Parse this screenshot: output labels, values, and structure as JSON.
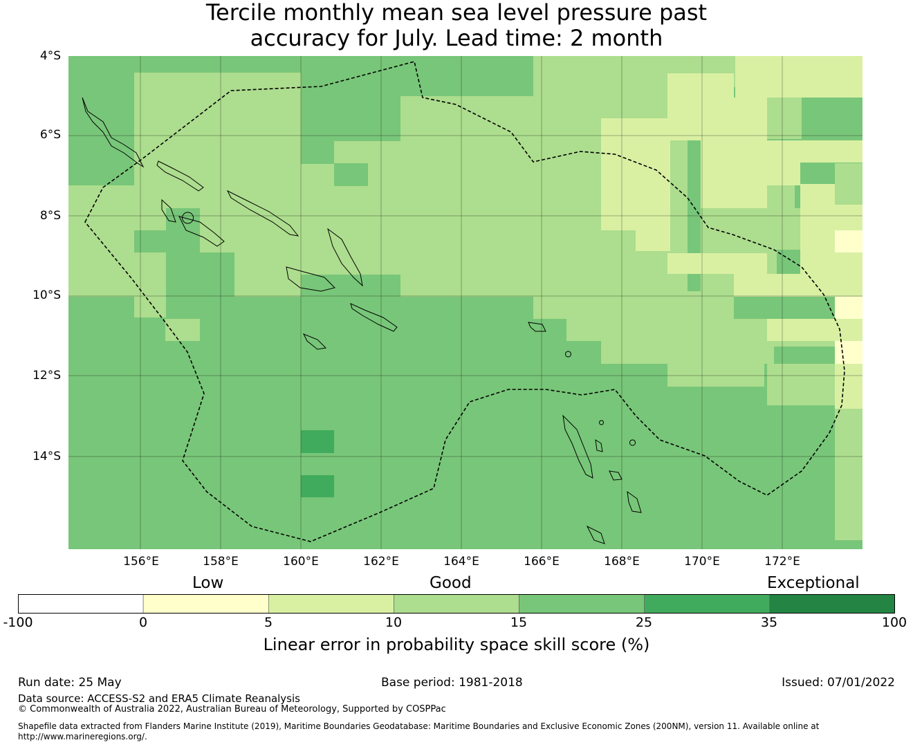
{
  "title": {
    "line1": "Tercile monthly mean sea level pressure past",
    "line2": "accuracy for July. Lead time: 2 month"
  },
  "map": {
    "lat_ticks": [
      "4°S",
      "6°S",
      "8°S",
      "10°S",
      "12°S",
      "14°S"
    ],
    "lon_ticks": [
      "156°E",
      "158°E",
      "160°E",
      "162°E",
      "164°E",
      "166°E",
      "168°E",
      "170°E",
      "172°E"
    ],
    "extent": {
      "lon_min": 154.2,
      "lon_max": 174.0,
      "lat_top": -4.0,
      "lat_bottom": -16.3
    },
    "boundary_style": "dashed"
  },
  "colorbar": {
    "categories": [
      "Low",
      "Good",
      "Exceptional"
    ],
    "tick_labels": [
      "-100",
      "0",
      "5",
      "10",
      "15",
      "25",
      "35",
      "100"
    ],
    "colors": [
      "#ffffff",
      "#ffffcc",
      "#d9f0a3",
      "#addd8e",
      "#78c679",
      "#41ab5d",
      "#238443"
    ],
    "label": "Linear error in probability space skill score (%)"
  },
  "footer": {
    "run_date": "Run date: 25 May",
    "base_period": "Base period: 1981-2018",
    "issued": "Issued: 07/01/2022",
    "data_source": "Data source: ACCESS-S2 and ERA5 Climate Reanalysis",
    "copyright": "© Commonwealth of Australia 2022, Australian Bureau of Meteorology, Supported by COSPPac",
    "shapefile": "Shapefile data extracted from Flanders Marine Institute (2019), Maritime Boundaries Geodatabase: Maritime Boundaries and Exclusive Economic Zones (200NM), version 11. Available online at http://www.marineregions.org/."
  }
}
